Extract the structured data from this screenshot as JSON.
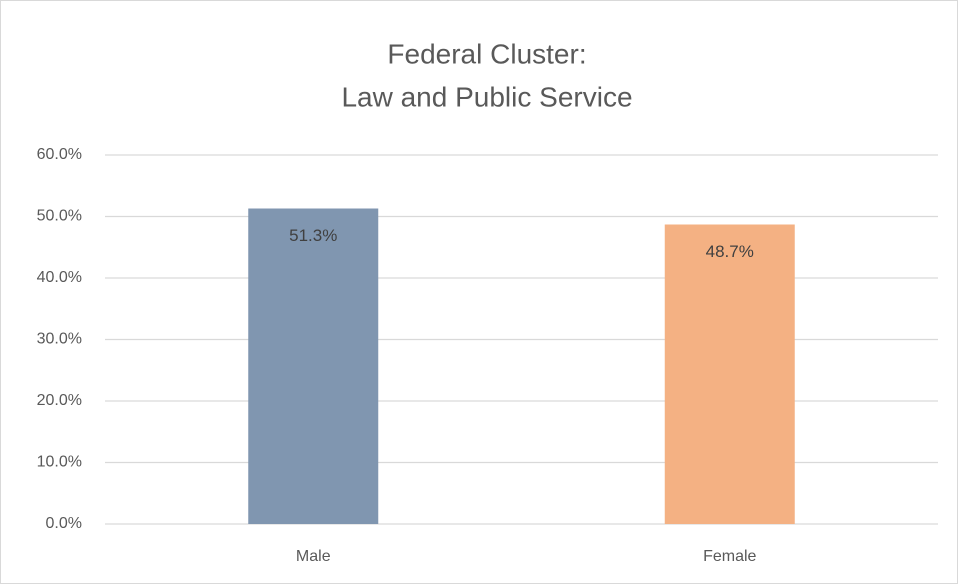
{
  "chart_data": {
    "type": "bar",
    "title": [
      "Federal Cluster:",
      "Law and Public Service"
    ],
    "categories": [
      "Male",
      "Female"
    ],
    "values": [
      51.3,
      48.7
    ],
    "value_labels": [
      "51.3%",
      "48.7%"
    ],
    "colors": [
      "#8096b0",
      "#f4b183"
    ],
    "ylim": [
      0,
      60
    ],
    "yticks": [
      {
        "value": 0,
        "label": "0.0%"
      },
      {
        "value": 10,
        "label": "10.0%"
      },
      {
        "value": 20,
        "label": "20.0%"
      },
      {
        "value": 30,
        "label": "30.0%"
      },
      {
        "value": 40,
        "label": "40.0%"
      },
      {
        "value": 50,
        "label": "50.0%"
      },
      {
        "value": 60,
        "label": "60.0%"
      }
    ],
    "grid": true
  }
}
